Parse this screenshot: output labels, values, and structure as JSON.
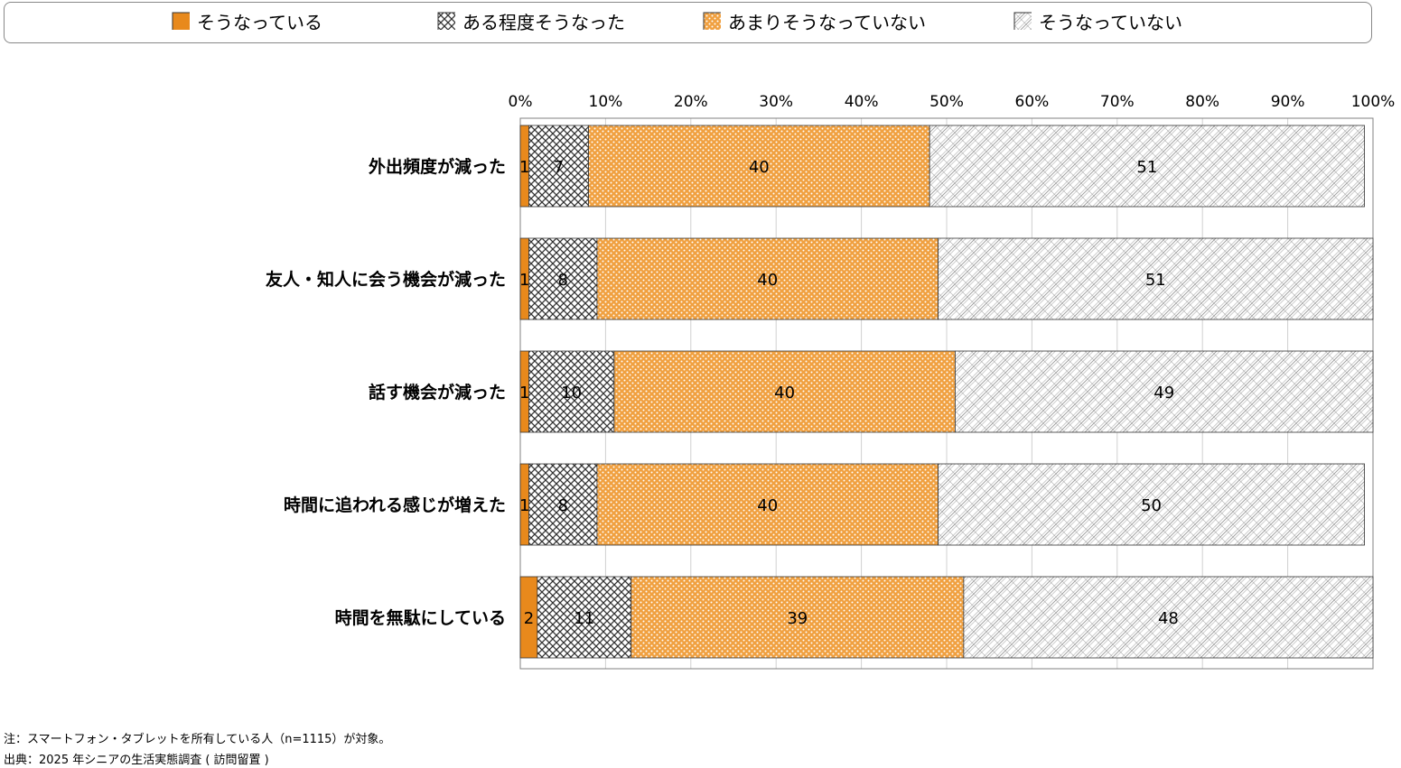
{
  "chart_data": {
    "type": "bar",
    "orientation": "horizontal",
    "stacked": true,
    "categories": [
      "外出頻度が減った",
      "友人・知人に会う機会が減った",
      "話す機会が減った",
      "時間に追われる感じが増えた",
      "時間を無駄にしている"
    ],
    "series": [
      {
        "name": "そうなっている",
        "values": [
          1,
          1,
          1,
          1,
          2
        ],
        "labels": [
          "1",
          "1",
          "1",
          "1",
          "2"
        ],
        "color": "#e8891c",
        "pattern": "solid"
      },
      {
        "name": "ある程度そうなった",
        "values": [
          7,
          8,
          10,
          8,
          11
        ],
        "labels": [
          "7",
          "8",
          "10",
          "8",
          "11"
        ],
        "color": "#555555",
        "pattern": "crosshatch"
      },
      {
        "name": "あまりそうなっていない",
        "values": [
          40,
          40,
          40,
          40,
          39
        ],
        "labels": [
          "40",
          "40",
          "40",
          "40",
          "39"
        ],
        "color": "#f0a040",
        "pattern": "dots"
      },
      {
        "name": "そうなっていない",
        "values": [
          51,
          51,
          49,
          50,
          48
        ],
        "labels": [
          "51",
          "51",
          "49",
          "50",
          "48"
        ],
        "color": "#9a9a9a",
        "pattern": "diagonal-cross"
      }
    ],
    "xlim": [
      0,
      100
    ],
    "x_ticks": [
      "0%",
      "10%",
      "20%",
      "30%",
      "40%",
      "50%",
      "60%",
      "70%",
      "80%",
      "90%",
      "100%"
    ],
    "x_axis_position": "top",
    "grid": true,
    "legend_position": "top"
  },
  "notes": {
    "note": "注：スマートフォン・タブレットを所有している人（n=1115）が対象。",
    "source": "出典：2025 年シニアの生活実態調査 ( 訪問留置 )"
  }
}
